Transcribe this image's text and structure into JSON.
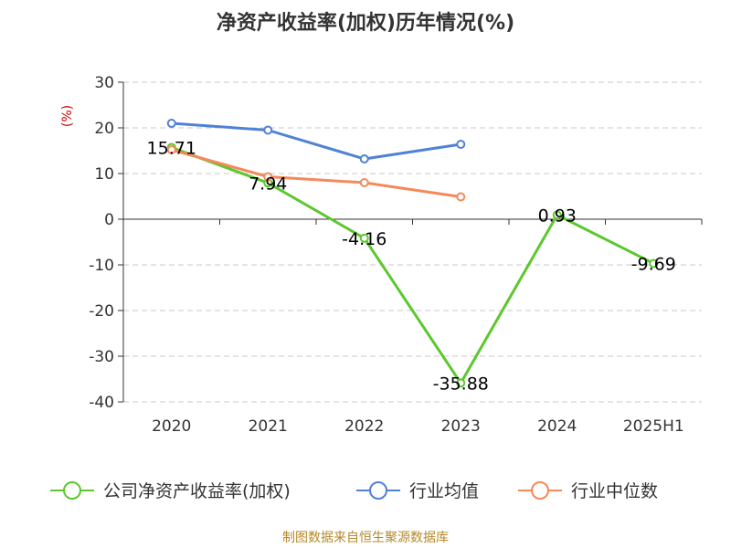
{
  "chart_data": {
    "type": "line",
    "title": "净资产收益率(加权)历年情况(%)",
    "ylabel": "(%)",
    "categories": [
      "2020",
      "2021",
      "2022",
      "2023",
      "2024",
      "2025H1"
    ],
    "ylim": [
      -40,
      30
    ],
    "yticks": [
      30,
      20,
      10,
      0,
      -10,
      -20,
      -30,
      -40
    ],
    "grid": true,
    "legend_position": "bottom",
    "series": [
      {
        "name": "公司净资产收益率(加权)",
        "color": "#5cc72e",
        "values": [
          15.71,
          7.94,
          -4.16,
          -35.88,
          0.93,
          -9.69
        ],
        "labels": [
          "15.71",
          "7.94",
          "-4.16",
          "-35.88",
          "0.93",
          "-9.69"
        ]
      },
      {
        "name": "行业均值",
        "color": "#4f82d6",
        "values": [
          21.0,
          19.5,
          13.2,
          16.4,
          null,
          null
        ]
      },
      {
        "name": "行业中位数",
        "color": "#f5895a",
        "values": [
          15.2,
          9.3,
          8.0,
          4.9,
          null,
          null
        ]
      }
    ],
    "source": "制图数据来自恒生聚源数据库"
  }
}
